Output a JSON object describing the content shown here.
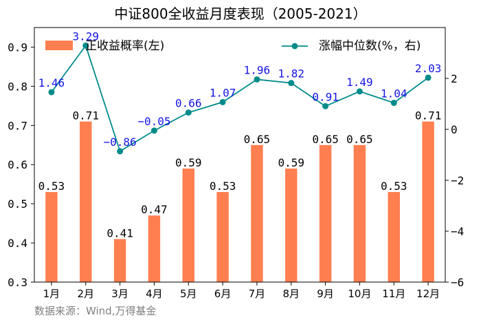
{
  "chart_data": {
    "type": "bar+line",
    "title": "中证800全收益月度表现（2005-2021）",
    "categories": [
      "1月",
      "2月",
      "3月",
      "4月",
      "5月",
      "6月",
      "7月",
      "8月",
      "9月",
      "10月",
      "11月",
      "12月"
    ],
    "series": [
      {
        "name": "正收益概率(左)",
        "type": "bar",
        "axis": "left",
        "color": "#FF7F50",
        "values": [
          0.53,
          0.71,
          0.41,
          0.47,
          0.59,
          0.53,
          0.65,
          0.59,
          0.65,
          0.65,
          0.53,
          0.71
        ]
      },
      {
        "name": "涨幅中位数(%，右)",
        "type": "line",
        "axis": "right",
        "color": "#008B8B",
        "values": [
          1.46,
          3.29,
          -0.86,
          -0.05,
          0.66,
          1.07,
          1.96,
          1.82,
          0.91,
          1.49,
          1.04,
          2.03
        ]
      }
    ],
    "ylim_left": [
      0.3,
      0.95
    ],
    "yticks_left": [
      "0.3",
      "0.4",
      "0.5",
      "0.6",
      "0.7",
      "0.8",
      "0.9"
    ],
    "ylim_right": [
      -6,
      4
    ],
    "yticks_right": [
      "−6",
      "−4",
      "−2",
      "0",
      "2"
    ],
    "bar_labels": [
      "0.53",
      "0.71",
      "0.41",
      "0.47",
      "0.59",
      "0.53",
      "0.65",
      "0.59",
      "0.65",
      "0.65",
      "0.53",
      "0.71"
    ],
    "line_labels": [
      "1.46",
      "3.29",
      "−0.86",
      "−0.05",
      "0.66",
      "1.07",
      "1.96",
      "1.82",
      "0.91",
      "1.49",
      "1.04",
      "2.03"
    ],
    "legend_position": "top",
    "grid": false
  },
  "source_note": "数据来源：Wind,万得基金"
}
